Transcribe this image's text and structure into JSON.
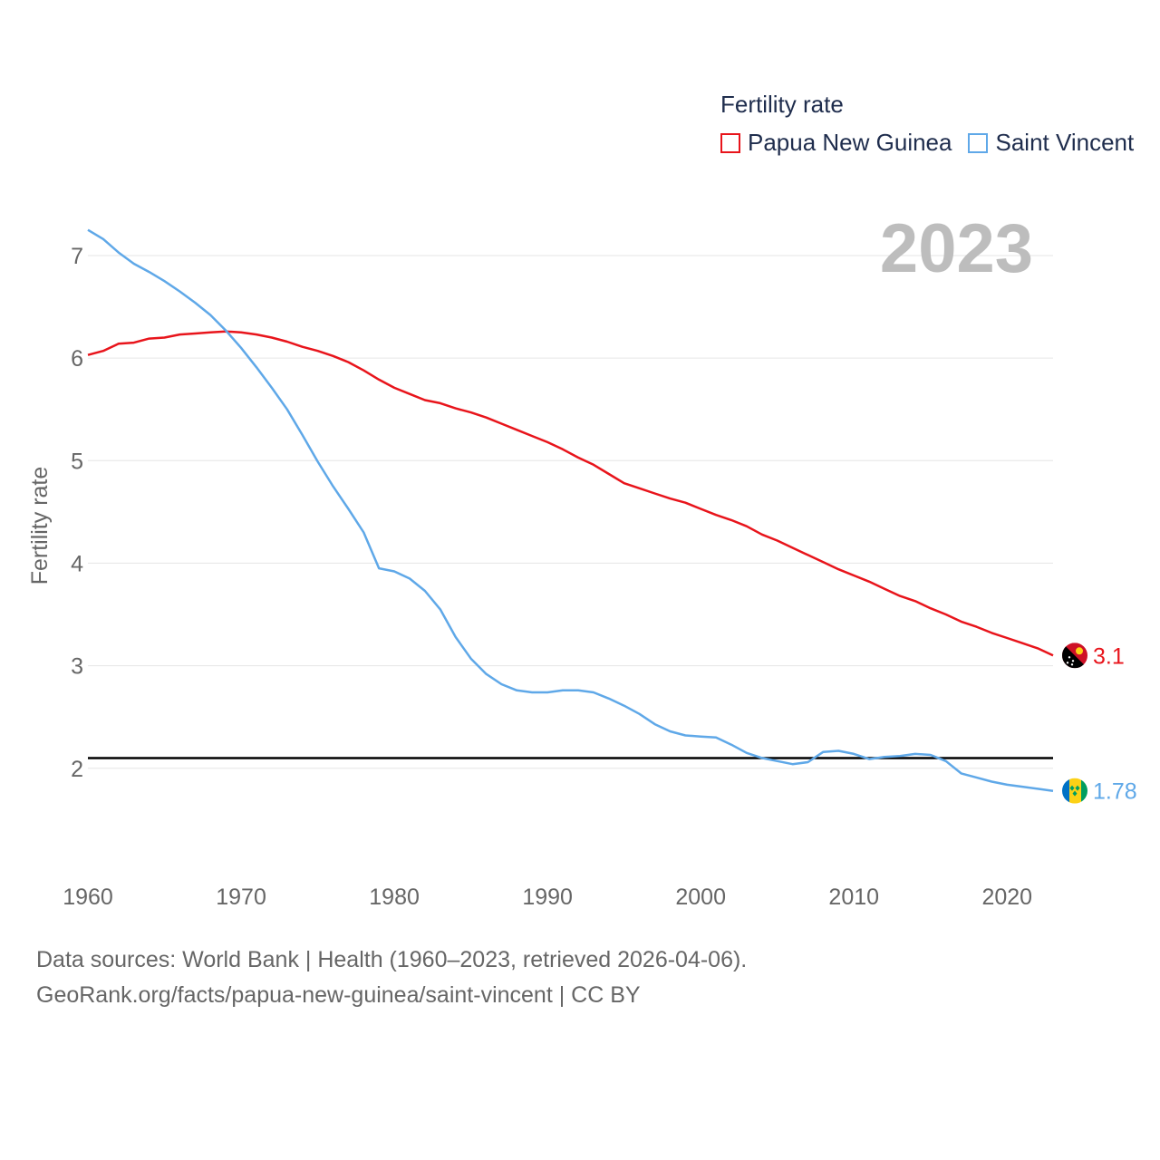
{
  "legend": {
    "title": "Fertility rate",
    "items": [
      {
        "label": "Papua New Guinea",
        "color": "#e8141b"
      },
      {
        "label": "Saint Vincent",
        "color": "#5fa8e8"
      }
    ]
  },
  "year_label": "2023",
  "footer": {
    "line1": "Data sources: World Bank | Health (1960–2023, retrieved 2026-04-06).",
    "line2": "GeoRank.org/facts/papua-new-guinea/saint-vincent | CC BY"
  },
  "chart_data": {
    "type": "line",
    "ylabel": "Fertility rate",
    "xlabel": "",
    "xlim": [
      1960,
      2023
    ],
    "ylim": [
      1.45,
      7.3
    ],
    "x_ticks": [
      1960,
      1970,
      1980,
      1990,
      2000,
      2010,
      2020
    ],
    "y_ticks": [
      2,
      3,
      4,
      5,
      6,
      7
    ],
    "reference_line": 2.1,
    "series": [
      {
        "name": "Papua New Guinea",
        "color": "#e8141b",
        "end_label": "3.1",
        "x": [
          1960,
          1961,
          1962,
          1963,
          1964,
          1965,
          1966,
          1967,
          1968,
          1969,
          1970,
          1971,
          1972,
          1973,
          1974,
          1975,
          1976,
          1977,
          1978,
          1979,
          1980,
          1981,
          1982,
          1983,
          1984,
          1985,
          1986,
          1987,
          1988,
          1989,
          1990,
          1991,
          1992,
          1993,
          1994,
          1995,
          1996,
          1997,
          1998,
          1999,
          2000,
          2001,
          2002,
          2003,
          2004,
          2005,
          2006,
          2007,
          2008,
          2009,
          2010,
          2011,
          2012,
          2013,
          2014,
          2015,
          2016,
          2017,
          2018,
          2019,
          2020,
          2021,
          2022,
          2023
        ],
        "values": [
          6.03,
          6.07,
          6.14,
          6.15,
          6.19,
          6.2,
          6.23,
          6.24,
          6.25,
          6.26,
          6.25,
          6.23,
          6.2,
          6.16,
          6.11,
          6.07,
          6.02,
          5.96,
          5.88,
          5.79,
          5.71,
          5.65,
          5.59,
          5.56,
          5.51,
          5.47,
          5.42,
          5.36,
          5.3,
          5.24,
          5.18,
          5.11,
          5.03,
          4.96,
          4.87,
          4.78,
          4.73,
          4.68,
          4.63,
          4.59,
          4.53,
          4.47,
          4.42,
          4.36,
          4.28,
          4.22,
          4.15,
          4.08,
          4.01,
          3.94,
          3.88,
          3.82,
          3.75,
          3.68,
          3.63,
          3.56,
          3.5,
          3.43,
          3.38,
          3.32,
          3.27,
          3.22,
          3.17,
          3.1
        ]
      },
      {
        "name": "Saint Vincent",
        "color": "#5fa8e8",
        "end_label": "1.78",
        "x": [
          1960,
          1961,
          1962,
          1963,
          1964,
          1965,
          1966,
          1967,
          1968,
          1969,
          1970,
          1971,
          1972,
          1973,
          1974,
          1975,
          1976,
          1977,
          1978,
          1979,
          1980,
          1981,
          1982,
          1983,
          1984,
          1985,
          1986,
          1987,
          1988,
          1989,
          1990,
          1991,
          1992,
          1993,
          1994,
          1995,
          1996,
          1997,
          1998,
          1999,
          2000,
          2001,
          2002,
          2003,
          2004,
          2005,
          2006,
          2007,
          2008,
          2009,
          2010,
          2011,
          2012,
          2013,
          2014,
          2015,
          2016,
          2017,
          2018,
          2019,
          2020,
          2021,
          2022,
          2023
        ],
        "values": [
          7.25,
          7.16,
          7.03,
          6.92,
          6.84,
          6.75,
          6.65,
          6.54,
          6.42,
          6.27,
          6.1,
          5.91,
          5.71,
          5.5,
          5.25,
          4.99,
          4.75,
          4.53,
          4.3,
          3.95,
          3.92,
          3.85,
          3.73,
          3.55,
          3.28,
          3.07,
          2.92,
          2.82,
          2.76,
          2.74,
          2.74,
          2.76,
          2.76,
          2.74,
          2.68,
          2.61,
          2.53,
          2.43,
          2.36,
          2.32,
          2.31,
          2.3,
          2.23,
          2.15,
          2.1,
          2.07,
          2.04,
          2.06,
          2.16,
          2.17,
          2.14,
          2.09,
          2.11,
          2.12,
          2.14,
          2.13,
          2.07,
          1.95,
          1.91,
          1.87,
          1.84,
          1.82,
          1.8,
          1.78
        ]
      }
    ]
  }
}
